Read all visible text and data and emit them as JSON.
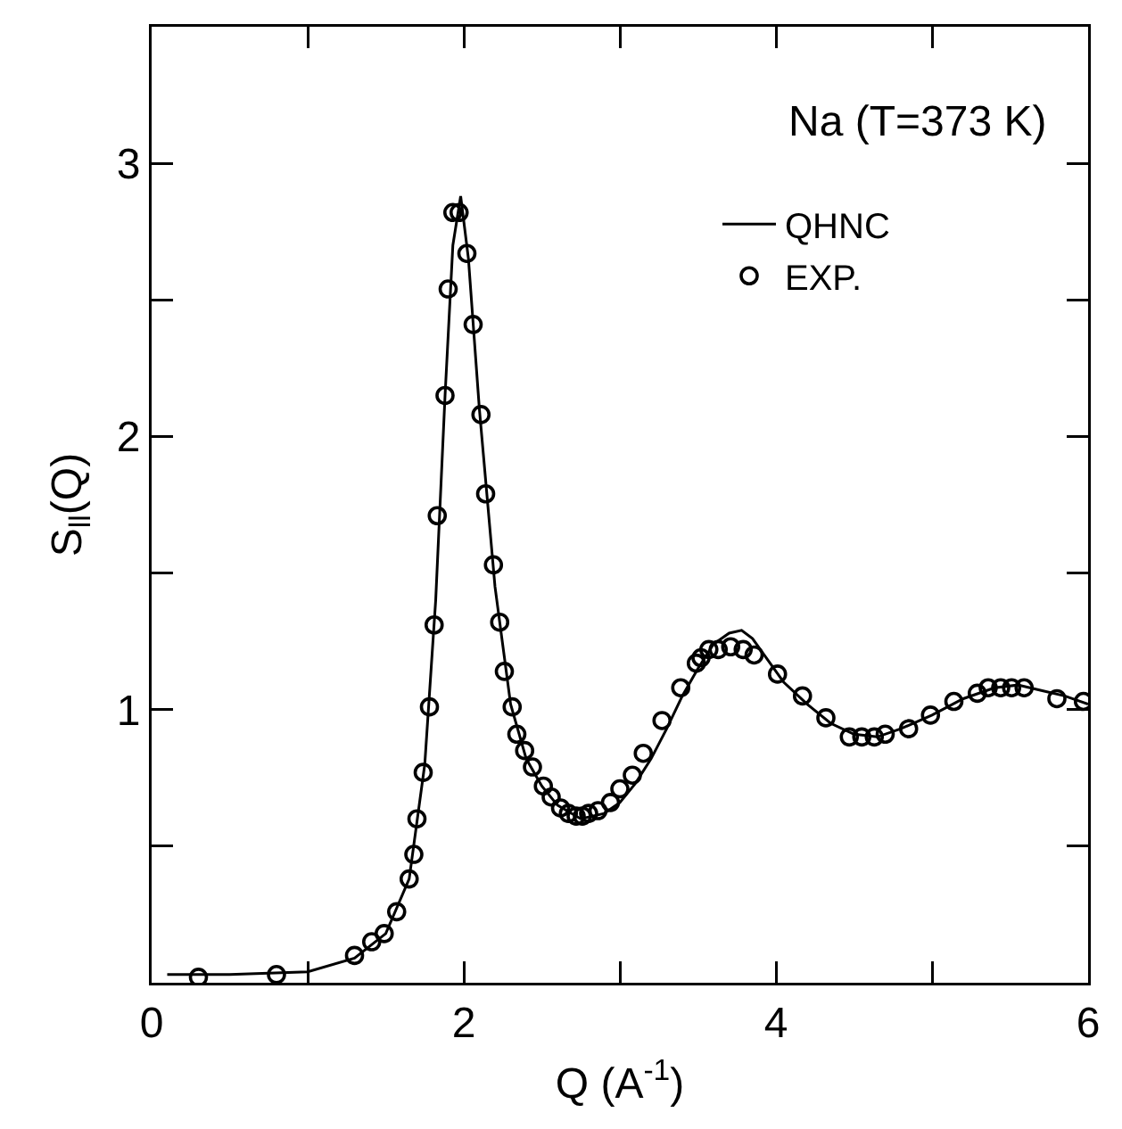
{
  "chart_data": {
    "type": "line",
    "xlabel": "Q (A$^{-1}$)",
    "ylabel": "S$_{ll}$(Q)",
    "annotations": [
      "Na (T=373 K)"
    ],
    "xlim": [
      0,
      6
    ],
    "ylim": [
      0,
      3.5
    ],
    "xticks": [
      0,
      {
        "value": 1,
        "label": null
      },
      2,
      {
        "value": 3,
        "label": null
      },
      4,
      {
        "value": 5,
        "label": null
      },
      6
    ],
    "yticks": [
      {
        "value": 0.5,
        "label": null
      },
      1,
      {
        "value": 1.5,
        "label": null
      },
      2,
      {
        "value": 2.5,
        "label": null
      },
      3
    ],
    "grid": false,
    "legend": "top right",
    "series": [
      {
        "name": "QHNC",
        "color": "#000000",
        "line_style": "solid",
        "marker": "none",
        "x": [
          0.1,
          0.5,
          1.0,
          1.3,
          1.5,
          1.65,
          1.75,
          1.82,
          1.88,
          1.93,
          1.98,
          2.03,
          2.1,
          2.2,
          2.3,
          2.4,
          2.5,
          2.6,
          2.75,
          2.9,
          3.0,
          3.1,
          3.2,
          3.3,
          3.4,
          3.5,
          3.6,
          3.7,
          3.78,
          3.85,
          3.95,
          4.05,
          4.2,
          4.35,
          4.5,
          4.65,
          4.8,
          5.0,
          5.2,
          5.4,
          5.55,
          5.7,
          5.85,
          6.0
        ],
        "values": [
          0.03,
          0.03,
          0.04,
          0.09,
          0.18,
          0.38,
          0.8,
          1.4,
          2.15,
          2.7,
          2.88,
          2.65,
          2.1,
          1.45,
          1.02,
          0.82,
          0.72,
          0.65,
          0.6,
          0.62,
          0.66,
          0.73,
          0.82,
          0.93,
          1.05,
          1.15,
          1.24,
          1.28,
          1.29,
          1.26,
          1.18,
          1.1,
          1.02,
          0.95,
          0.91,
          0.9,
          0.93,
          0.98,
          1.04,
          1.08,
          1.09,
          1.07,
          1.05,
          1.02
        ]
      },
      {
        "name": "EXP.",
        "type": "scatter",
        "color": "#000000",
        "marker": "circle",
        "x": [
          0.3,
          0.8,
          1.3,
          1.41,
          1.49,
          1.57,
          1.65,
          1.68,
          1.7,
          1.74,
          1.78,
          1.81,
          1.83,
          1.88,
          1.9,
          1.93,
          1.97,
          2.02,
          2.06,
          2.11,
          2.14,
          2.19,
          2.23,
          2.26,
          2.31,
          2.34,
          2.39,
          2.44,
          2.51,
          2.56,
          2.62,
          2.67,
          2.72,
          2.76,
          2.8,
          2.86,
          2.94,
          3.0,
          3.08,
          3.15,
          3.27,
          3.39,
          3.49,
          3.52,
          3.57,
          3.63,
          3.71,
          3.79,
          3.86,
          4.01,
          4.17,
          4.32,
          4.47,
          4.55,
          4.63,
          4.7,
          4.85,
          4.99,
          5.14,
          5.29,
          5.36,
          5.44,
          5.51,
          5.59,
          5.8,
          5.97
        ],
        "values": [
          0.02,
          0.03,
          0.1,
          0.15,
          0.18,
          0.26,
          0.38,
          0.47,
          0.6,
          0.77,
          1.01,
          1.31,
          1.71,
          2.15,
          2.54,
          2.82,
          2.82,
          2.67,
          2.41,
          2.08,
          1.79,
          1.53,
          1.32,
          1.14,
          1.01,
          0.91,
          0.85,
          0.79,
          0.72,
          0.68,
          0.64,
          0.62,
          0.61,
          0.61,
          0.62,
          0.63,
          0.66,
          0.71,
          0.76,
          0.84,
          0.96,
          1.08,
          1.17,
          1.19,
          1.22,
          1.22,
          1.23,
          1.22,
          1.2,
          1.13,
          1.05,
          0.97,
          0.9,
          0.9,
          0.9,
          0.91,
          0.93,
          0.98,
          1.03,
          1.06,
          1.08,
          1.08,
          1.08,
          1.08,
          1.04,
          1.03
        ]
      }
    ]
  }
}
